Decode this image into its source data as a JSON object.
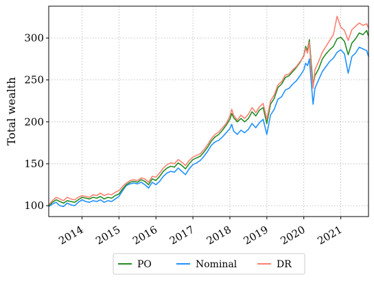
{
  "chart_data": {
    "type": "line",
    "ylabel": "Total wealth",
    "xlabel": "",
    "xlim": [
      2013.1,
      2021.75
    ],
    "ylim": [
      87,
      338
    ],
    "x_ticks": [
      {
        "value": 2014,
        "label": "2014"
      },
      {
        "value": 2015,
        "label": "2015"
      },
      {
        "value": 2016,
        "label": "2016"
      },
      {
        "value": 2017,
        "label": "2017"
      },
      {
        "value": 2018,
        "label": "2018"
      },
      {
        "value": 2019,
        "label": "2019"
      },
      {
        "value": 2020,
        "label": "2020"
      },
      {
        "value": 2021,
        "label": "2021"
      }
    ],
    "y_ticks": [
      {
        "value": 100,
        "label": "100"
      },
      {
        "value": 150,
        "label": "150"
      },
      {
        "value": 200,
        "label": "200"
      },
      {
        "value": 250,
        "label": "250"
      },
      {
        "value": 300,
        "label": "300"
      }
    ],
    "grid": true,
    "legend_position": "bottom-center",
    "series": [
      {
        "name": "PO",
        "color": "#228B22",
        "points": [
          [
            2013.1,
            100
          ],
          [
            2013.2,
            104
          ],
          [
            2013.3,
            107
          ],
          [
            2013.4,
            105
          ],
          [
            2013.5,
            103
          ],
          [
            2013.6,
            106
          ],
          [
            2013.7,
            105
          ],
          [
            2013.8,
            104
          ],
          [
            2013.9,
            107
          ],
          [
            2014.0,
            110
          ],
          [
            2014.1,
            109
          ],
          [
            2014.2,
            108
          ],
          [
            2014.3,
            110
          ],
          [
            2014.4,
            109
          ],
          [
            2014.5,
            111
          ],
          [
            2014.6,
            108
          ],
          [
            2014.7,
            110
          ],
          [
            2014.8,
            109
          ],
          [
            2014.9,
            112
          ],
          [
            2015.0,
            114
          ],
          [
            2015.1,
            120
          ],
          [
            2015.2,
            125
          ],
          [
            2015.3,
            128
          ],
          [
            2015.4,
            129
          ],
          [
            2015.5,
            128
          ],
          [
            2015.6,
            131
          ],
          [
            2015.7,
            129
          ],
          [
            2015.8,
            125
          ],
          [
            2015.9,
            132
          ],
          [
            2016.0,
            130
          ],
          [
            2016.1,
            135
          ],
          [
            2016.2,
            141
          ],
          [
            2016.3,
            145
          ],
          [
            2016.4,
            147
          ],
          [
            2016.5,
            146
          ],
          [
            2016.6,
            151
          ],
          [
            2016.7,
            148
          ],
          [
            2016.8,
            144
          ],
          [
            2016.9,
            150
          ],
          [
            2017.0,
            155
          ],
          [
            2017.1,
            157
          ],
          [
            2017.2,
            159
          ],
          [
            2017.3,
            164
          ],
          [
            2017.4,
            170
          ],
          [
            2017.5,
            177
          ],
          [
            2017.6,
            182
          ],
          [
            2017.7,
            185
          ],
          [
            2017.8,
            190
          ],
          [
            2017.9,
            196
          ],
          [
            2018.0,
            203
          ],
          [
            2018.05,
            210
          ],
          [
            2018.1,
            205
          ],
          [
            2018.2,
            200
          ],
          [
            2018.3,
            204
          ],
          [
            2018.4,
            200
          ],
          [
            2018.5,
            204
          ],
          [
            2018.6,
            212
          ],
          [
            2018.7,
            207
          ],
          [
            2018.8,
            214
          ],
          [
            2018.9,
            217
          ],
          [
            2019.0,
            198
          ],
          [
            2019.1,
            221
          ],
          [
            2019.2,
            228
          ],
          [
            2019.3,
            241
          ],
          [
            2019.4,
            245
          ],
          [
            2019.5,
            253
          ],
          [
            2019.6,
            255
          ],
          [
            2019.7,
            260
          ],
          [
            2019.8,
            265
          ],
          [
            2019.9,
            271
          ],
          [
            2020.0,
            279
          ],
          [
            2020.05,
            290
          ],
          [
            2020.1,
            285
          ],
          [
            2020.15,
            298
          ],
          [
            2020.2,
            270
          ],
          [
            2020.25,
            244
          ],
          [
            2020.3,
            255
          ],
          [
            2020.4,
            263
          ],
          [
            2020.5,
            275
          ],
          [
            2020.6,
            281
          ],
          [
            2020.7,
            286
          ],
          [
            2020.8,
            290
          ],
          [
            2020.9,
            299
          ],
          [
            2021.0,
            301
          ],
          [
            2021.1,
            296
          ],
          [
            2021.2,
            280
          ],
          [
            2021.3,
            294
          ],
          [
            2021.4,
            299
          ],
          [
            2021.5,
            306
          ],
          [
            2021.6,
            304
          ],
          [
            2021.7,
            309
          ],
          [
            2021.75,
            302
          ]
        ]
      },
      {
        "name": "Nominal",
        "color": "#1E90FF",
        "points": [
          [
            2013.1,
            99
          ],
          [
            2013.2,
            102
          ],
          [
            2013.3,
            104
          ],
          [
            2013.4,
            100
          ],
          [
            2013.5,
            99
          ],
          [
            2013.6,
            103
          ],
          [
            2013.7,
            101
          ],
          [
            2013.8,
            100
          ],
          [
            2013.9,
            104
          ],
          [
            2014.0,
            107
          ],
          [
            2014.1,
            105
          ],
          [
            2014.2,
            104
          ],
          [
            2014.3,
            106
          ],
          [
            2014.4,
            105
          ],
          [
            2014.5,
            107
          ],
          [
            2014.6,
            104
          ],
          [
            2014.7,
            106
          ],
          [
            2014.8,
            105
          ],
          [
            2014.9,
            108
          ],
          [
            2015.0,
            111
          ],
          [
            2015.1,
            118
          ],
          [
            2015.2,
            124
          ],
          [
            2015.3,
            126
          ],
          [
            2015.4,
            127
          ],
          [
            2015.5,
            126
          ],
          [
            2015.6,
            128
          ],
          [
            2015.7,
            125
          ],
          [
            2015.8,
            121
          ],
          [
            2015.9,
            128
          ],
          [
            2016.0,
            125
          ],
          [
            2016.1,
            129
          ],
          [
            2016.2,
            135
          ],
          [
            2016.3,
            139
          ],
          [
            2016.4,
            141
          ],
          [
            2016.5,
            140
          ],
          [
            2016.6,
            145
          ],
          [
            2016.7,
            141
          ],
          [
            2016.8,
            137
          ],
          [
            2016.9,
            144
          ],
          [
            2017.0,
            149
          ],
          [
            2017.1,
            151
          ],
          [
            2017.2,
            154
          ],
          [
            2017.3,
            159
          ],
          [
            2017.4,
            165
          ],
          [
            2017.5,
            172
          ],
          [
            2017.6,
            176
          ],
          [
            2017.7,
            178
          ],
          [
            2017.8,
            182
          ],
          [
            2017.9,
            187
          ],
          [
            2018.0,
            192
          ],
          [
            2018.05,
            197
          ],
          [
            2018.1,
            189
          ],
          [
            2018.2,
            185
          ],
          [
            2018.3,
            190
          ],
          [
            2018.4,
            187
          ],
          [
            2018.5,
            191
          ],
          [
            2018.6,
            198
          ],
          [
            2018.7,
            193
          ],
          [
            2018.8,
            199
          ],
          [
            2018.9,
            203
          ],
          [
            2019.0,
            185
          ],
          [
            2019.1,
            208
          ],
          [
            2019.2,
            215
          ],
          [
            2019.3,
            227
          ],
          [
            2019.4,
            230
          ],
          [
            2019.5,
            238
          ],
          [
            2019.6,
            240
          ],
          [
            2019.7,
            245
          ],
          [
            2019.8,
            249
          ],
          [
            2019.9,
            255
          ],
          [
            2020.0,
            262
          ],
          [
            2020.05,
            270
          ],
          [
            2020.1,
            267
          ],
          [
            2020.15,
            275
          ],
          [
            2020.2,
            248
          ],
          [
            2020.25,
            221
          ],
          [
            2020.3,
            240
          ],
          [
            2020.4,
            250
          ],
          [
            2020.5,
            260
          ],
          [
            2020.6,
            266
          ],
          [
            2020.7,
            272
          ],
          [
            2020.8,
            276
          ],
          [
            2020.9,
            283
          ],
          [
            2021.0,
            286
          ],
          [
            2021.1,
            281
          ],
          [
            2021.2,
            258
          ],
          [
            2021.3,
            278
          ],
          [
            2021.4,
            282
          ],
          [
            2021.5,
            289
          ],
          [
            2021.6,
            287
          ],
          [
            2021.7,
            285
          ],
          [
            2021.75,
            278
          ]
        ]
      },
      {
        "name": "DR",
        "color": "#FA8072",
        "points": [
          [
            2013.1,
            101
          ],
          [
            2013.2,
            106
          ],
          [
            2013.3,
            110
          ],
          [
            2013.4,
            108
          ],
          [
            2013.5,
            106
          ],
          [
            2013.6,
            110
          ],
          [
            2013.7,
            108
          ],
          [
            2013.8,
            107
          ],
          [
            2013.9,
            110
          ],
          [
            2014.0,
            112
          ],
          [
            2014.1,
            111
          ],
          [
            2014.2,
            110
          ],
          [
            2014.3,
            113
          ],
          [
            2014.4,
            112
          ],
          [
            2014.5,
            115
          ],
          [
            2014.6,
            112
          ],
          [
            2014.7,
            114
          ],
          [
            2014.8,
            113
          ],
          [
            2014.9,
            116
          ],
          [
            2015.0,
            118
          ],
          [
            2015.1,
            123
          ],
          [
            2015.2,
            127
          ],
          [
            2015.3,
            130
          ],
          [
            2015.4,
            131
          ],
          [
            2015.5,
            130
          ],
          [
            2015.6,
            133
          ],
          [
            2015.7,
            132
          ],
          [
            2015.8,
            128
          ],
          [
            2015.9,
            135
          ],
          [
            2016.0,
            134
          ],
          [
            2016.1,
            139
          ],
          [
            2016.2,
            145
          ],
          [
            2016.3,
            149
          ],
          [
            2016.4,
            151
          ],
          [
            2016.5,
            150
          ],
          [
            2016.6,
            155
          ],
          [
            2016.7,
            152
          ],
          [
            2016.8,
            148
          ],
          [
            2016.9,
            154
          ],
          [
            2017.0,
            158
          ],
          [
            2017.1,
            160
          ],
          [
            2017.2,
            162
          ],
          [
            2017.3,
            167
          ],
          [
            2017.4,
            173
          ],
          [
            2017.5,
            180
          ],
          [
            2017.6,
            185
          ],
          [
            2017.7,
            188
          ],
          [
            2017.8,
            193
          ],
          [
            2017.9,
            198
          ],
          [
            2018.0,
            207
          ],
          [
            2018.05,
            215
          ],
          [
            2018.1,
            208
          ],
          [
            2018.2,
            202
          ],
          [
            2018.3,
            208
          ],
          [
            2018.4,
            204
          ],
          [
            2018.5,
            209
          ],
          [
            2018.6,
            217
          ],
          [
            2018.7,
            211
          ],
          [
            2018.8,
            218
          ],
          [
            2018.9,
            222
          ],
          [
            2019.0,
            203
          ],
          [
            2019.1,
            225
          ],
          [
            2019.2,
            232
          ],
          [
            2019.3,
            244
          ],
          [
            2019.4,
            248
          ],
          [
            2019.5,
            256
          ],
          [
            2019.6,
            257
          ],
          [
            2019.7,
            262
          ],
          [
            2019.8,
            266
          ],
          [
            2019.9,
            272
          ],
          [
            2020.0,
            278
          ],
          [
            2020.05,
            288
          ],
          [
            2020.1,
            282
          ],
          [
            2020.15,
            295
          ],
          [
            2020.2,
            262
          ],
          [
            2020.25,
            240
          ],
          [
            2020.3,
            262
          ],
          [
            2020.4,
            272
          ],
          [
            2020.5,
            283
          ],
          [
            2020.6,
            290
          ],
          [
            2020.7,
            297
          ],
          [
            2020.8,
            304
          ],
          [
            2020.9,
            326
          ],
          [
            2021.0,
            313
          ],
          [
            2021.1,
            309
          ],
          [
            2021.2,
            297
          ],
          [
            2021.3,
            310
          ],
          [
            2021.4,
            314
          ],
          [
            2021.5,
            318
          ],
          [
            2021.6,
            315
          ],
          [
            2021.7,
            317
          ],
          [
            2021.75,
            312
          ]
        ]
      }
    ]
  }
}
